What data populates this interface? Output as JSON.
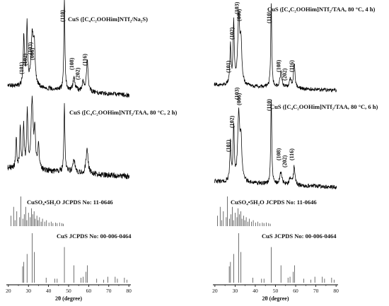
{
  "chart_data": [
    {
      "type": "line",
      "panel": "left",
      "xlabel": "2θ (degree)",
      "xlim": [
        19,
        81
      ],
      "x_ticks": [
        "20",
        "30",
        "40",
        "50",
        "60",
        "70",
        "80"
      ],
      "series": [
        {
          "name": "CuS ([C₄C₂OOHim]NTf₂/Na₂S)",
          "peak_labels": [
            {
              "text": "(101)",
              "x": 27.5
            },
            {
              "text": "(102)",
              "x": 29.2
            },
            {
              "text": "(103)",
              "x": 31.8
            },
            {
              "text": "(006)",
              "x": 32.8
            },
            {
              "text": "(110)",
              "x": 47.8
            },
            {
              "text": "(108)",
              "x": 52.5
            },
            {
              "text": "(202)",
              "x": 55.5
            },
            {
              "text": "(116)",
              "x": 59.0
            }
          ],
          "peaks": [
            {
              "x": 27.7,
              "h": 0.55,
              "w": 0.35
            },
            {
              "x": 29.3,
              "h": 0.68,
              "w": 0.35
            },
            {
              "x": 31.9,
              "h": 0.55,
              "w": 0.7
            },
            {
              "x": 32.9,
              "h": 0.38,
              "w": 0.5
            },
            {
              "x": 47.9,
              "h": 1.0,
              "w": 0.3
            },
            {
              "x": 52.7,
              "h": 0.14,
              "w": 0.6
            },
            {
              "x": 57.2,
              "h": 0.1,
              "w": 0.6
            },
            {
              "x": 59.3,
              "h": 0.35,
              "w": 0.45
            }
          ]
        },
        {
          "name": "CuS ([C₄C₂OOHim]NTf₂/TAA, 80 °C, 2 h)",
          "peak_labels": [],
          "peaks": [
            {
              "x": 23.9,
              "h": 0.45,
              "w": 0.3
            },
            {
              "x": 25.9,
              "h": 0.6,
              "w": 0.3
            },
            {
              "x": 27.6,
              "h": 0.62,
              "w": 0.35
            },
            {
              "x": 29.4,
              "h": 0.8,
              "w": 0.35
            },
            {
              "x": 31.8,
              "h": 0.95,
              "w": 0.6
            },
            {
              "x": 33.2,
              "h": 0.5,
              "w": 0.4
            },
            {
              "x": 35.0,
              "h": 0.35,
              "w": 0.4
            },
            {
              "x": 47.9,
              "h": 0.95,
              "w": 0.3
            },
            {
              "x": 52.6,
              "h": 0.2,
              "w": 0.6
            },
            {
              "x": 59.2,
              "h": 0.35,
              "w": 0.6
            }
          ]
        },
        {
          "type": "reference",
          "name": "CuSO₄•5H₂O JCPDS No: 11-0646",
          "lines": [
            {
              "x": 21.3,
              "h": 0.35
            },
            {
              "x": 22.6,
              "h": 0.65
            },
            {
              "x": 23.3,
              "h": 0.2
            },
            {
              "x": 24.2,
              "h": 0.5
            },
            {
              "x": 25.6,
              "h": 0.3
            },
            {
              "x": 26.2,
              "h": 1.0
            },
            {
              "x": 27.2,
              "h": 0.25
            },
            {
              "x": 27.9,
              "h": 0.4
            },
            {
              "x": 28.6,
              "h": 0.65
            },
            {
              "x": 29.2,
              "h": 0.2
            },
            {
              "x": 30.0,
              "h": 0.45
            },
            {
              "x": 30.9,
              "h": 0.3
            },
            {
              "x": 31.5,
              "h": 0.6
            },
            {
              "x": 32.1,
              "h": 0.4
            },
            {
              "x": 32.8,
              "h": 0.5
            },
            {
              "x": 33.4,
              "h": 0.25
            },
            {
              "x": 34.2,
              "h": 0.35
            },
            {
              "x": 34.8,
              "h": 0.2
            },
            {
              "x": 35.5,
              "h": 0.3
            },
            {
              "x": 36.3,
              "h": 0.15
            },
            {
              "x": 37.0,
              "h": 0.25
            },
            {
              "x": 38.1,
              "h": 0.15
            },
            {
              "x": 39.0,
              "h": 0.2
            },
            {
              "x": 40.2,
              "h": 0.12
            },
            {
              "x": 41.3,
              "h": 0.15
            },
            {
              "x": 42.2,
              "h": 0.1
            },
            {
              "x": 43.5,
              "h": 0.12
            },
            {
              "x": 44.3,
              "h": 0.1
            },
            {
              "x": 45.5,
              "h": 0.12
            },
            {
              "x": 46.6,
              "h": 0.1
            },
            {
              "x": 47.4,
              "h": 0.08
            }
          ]
        },
        {
          "type": "reference",
          "name": "CuS  JCPDS No: 00-006-0464",
          "lines": [
            {
              "x": 27.1,
              "h": 0.33
            },
            {
              "x": 27.7,
              "h": 0.42
            },
            {
              "x": 29.3,
              "h": 0.58
            },
            {
              "x": 31.8,
              "h": 1.0
            },
            {
              "x": 32.9,
              "h": 0.62
            },
            {
              "x": 38.8,
              "h": 0.1
            },
            {
              "x": 43.1,
              "h": 0.08
            },
            {
              "x": 44.3,
              "h": 0.08
            },
            {
              "x": 47.9,
              "h": 0.72
            },
            {
              "x": 52.7,
              "h": 0.35
            },
            {
              "x": 56.2,
              "h": 0.1
            },
            {
              "x": 57.2,
              "h": 0.12
            },
            {
              "x": 58.7,
              "h": 0.22
            },
            {
              "x": 59.4,
              "h": 0.35
            },
            {
              "x": 64.0,
              "h": 0.08
            },
            {
              "x": 67.5,
              "h": 0.06
            },
            {
              "x": 69.5,
              "h": 0.12
            },
            {
              "x": 73.2,
              "h": 0.12
            },
            {
              "x": 74.3,
              "h": 0.08
            },
            {
              "x": 77.8,
              "h": 0.1
            },
            {
              "x": 79.0,
              "h": 0.06
            }
          ]
        }
      ]
    },
    {
      "type": "line",
      "panel": "right",
      "xlabel": "2θ (degree)",
      "xlim": [
        19,
        81
      ],
      "x_ticks": [
        "20",
        "30",
        "40",
        "50",
        "60",
        "70",
        "80"
      ],
      "series": [
        {
          "name": "CuS ([C₄C₂OOHim]NTf₂/TAA, 80 °C, 4 h)",
          "peak_labels": [
            {
              "text": "(101)",
              "x": 27.5
            },
            {
              "text": "(102)",
              "x": 29.3
            },
            {
              "text": "(103)",
              "x": 31.8
            },
            {
              "text": "(006)",
              "x": 32.8
            },
            {
              "text": "(110)",
              "x": 47.8
            },
            {
              "text": "(108)",
              "x": 52.5
            },
            {
              "text": "(202)",
              "x": 55.5
            },
            {
              "text": "(116)",
              "x": 59.0
            }
          ],
          "peaks": [
            {
              "x": 27.7,
              "h": 0.45,
              "w": 0.35
            },
            {
              "x": 29.3,
              "h": 0.72,
              "w": 0.35
            },
            {
              "x": 31.8,
              "h": 0.78,
              "w": 0.6
            },
            {
              "x": 32.9,
              "h": 0.45,
              "w": 0.5
            },
            {
              "x": 47.9,
              "h": 1.0,
              "w": 0.3
            },
            {
              "x": 52.7,
              "h": 0.18,
              "w": 0.6
            },
            {
              "x": 57.3,
              "h": 0.1,
              "w": 0.6
            },
            {
              "x": 59.3,
              "h": 0.28,
              "w": 0.45
            }
          ]
        },
        {
          "name": "CuS ([C₄C₂OOHim]NTf₂/TAA, 80 °C, 6 h)",
          "peak_labels": [
            {
              "text": "(101)",
              "x": 27.5
            },
            {
              "text": "(102)",
              "x": 29.3
            },
            {
              "text": "(103)",
              "x": 31.8
            },
            {
              "text": "(006)",
              "x": 32.8
            },
            {
              "text": "(110)",
              "x": 47.8
            },
            {
              "text": "(108)",
              "x": 52.5
            },
            {
              "text": "(202)",
              "x": 55.5
            },
            {
              "text": "(116)",
              "x": 59.0
            }
          ],
          "peaks": [
            {
              "x": 27.7,
              "h": 0.45,
              "w": 0.35
            },
            {
              "x": 29.3,
              "h": 0.65,
              "w": 0.35
            },
            {
              "x": 31.8,
              "h": 0.78,
              "w": 0.6
            },
            {
              "x": 32.9,
              "h": 0.45,
              "w": 0.5
            },
            {
              "x": 47.9,
              "h": 1.0,
              "w": 0.3
            },
            {
              "x": 52.7,
              "h": 0.15,
              "w": 0.6
            },
            {
              "x": 57.3,
              "h": 0.08,
              "w": 0.6
            },
            {
              "x": 59.3,
              "h": 0.22,
              "w": 0.45
            }
          ]
        },
        {
          "type": "reference",
          "name": "CuSO₄•5H₂O  JCPDS No: 11-0646",
          "lines": [
            {
              "x": 21.3,
              "h": 0.35
            },
            {
              "x": 22.6,
              "h": 0.65
            },
            {
              "x": 23.3,
              "h": 0.2
            },
            {
              "x": 24.2,
              "h": 0.5
            },
            {
              "x": 25.6,
              "h": 0.3
            },
            {
              "x": 26.2,
              "h": 1.0
            },
            {
              "x": 27.2,
              "h": 0.25
            },
            {
              "x": 27.9,
              "h": 0.4
            },
            {
              "x": 28.6,
              "h": 0.65
            },
            {
              "x": 29.2,
              "h": 0.2
            },
            {
              "x": 30.0,
              "h": 0.45
            },
            {
              "x": 30.9,
              "h": 0.3
            },
            {
              "x": 31.5,
              "h": 0.6
            },
            {
              "x": 32.1,
              "h": 0.4
            },
            {
              "x": 32.8,
              "h": 0.5
            },
            {
              "x": 33.4,
              "h": 0.25
            },
            {
              "x": 34.2,
              "h": 0.35
            },
            {
              "x": 34.8,
              "h": 0.2
            },
            {
              "x": 35.5,
              "h": 0.3
            },
            {
              "x": 36.3,
              "h": 0.15
            },
            {
              "x": 37.0,
              "h": 0.25
            },
            {
              "x": 38.1,
              "h": 0.15
            },
            {
              "x": 39.0,
              "h": 0.2
            },
            {
              "x": 40.2,
              "h": 0.12
            },
            {
              "x": 41.3,
              "h": 0.15
            },
            {
              "x": 42.2,
              "h": 0.1
            },
            {
              "x": 43.5,
              "h": 0.12
            },
            {
              "x": 44.3,
              "h": 0.1
            },
            {
              "x": 45.5,
              "h": 0.12
            },
            {
              "x": 46.6,
              "h": 0.1
            },
            {
              "x": 47.4,
              "h": 0.08
            }
          ]
        },
        {
          "type": "reference",
          "name": "CuS  JCPDS No: 00-006-0464",
          "lines": [
            {
              "x": 27.1,
              "h": 0.33
            },
            {
              "x": 27.7,
              "h": 0.42
            },
            {
              "x": 29.3,
              "h": 0.58
            },
            {
              "x": 31.8,
              "h": 1.0
            },
            {
              "x": 32.9,
              "h": 0.62
            },
            {
              "x": 38.8,
              "h": 0.1
            },
            {
              "x": 43.1,
              "h": 0.08
            },
            {
              "x": 44.3,
              "h": 0.08
            },
            {
              "x": 47.9,
              "h": 0.72
            },
            {
              "x": 52.7,
              "h": 0.35
            },
            {
              "x": 56.2,
              "h": 0.1
            },
            {
              "x": 57.2,
              "h": 0.12
            },
            {
              "x": 58.7,
              "h": 0.22
            },
            {
              "x": 59.4,
              "h": 0.35
            },
            {
              "x": 64.0,
              "h": 0.08
            },
            {
              "x": 67.5,
              "h": 0.06
            },
            {
              "x": 69.5,
              "h": 0.12
            },
            {
              "x": 73.2,
              "h": 0.12
            },
            {
              "x": 74.3,
              "h": 0.08
            },
            {
              "x": 77.8,
              "h": 0.1
            },
            {
              "x": 79.0,
              "h": 0.06
            }
          ]
        }
      ]
    }
  ]
}
